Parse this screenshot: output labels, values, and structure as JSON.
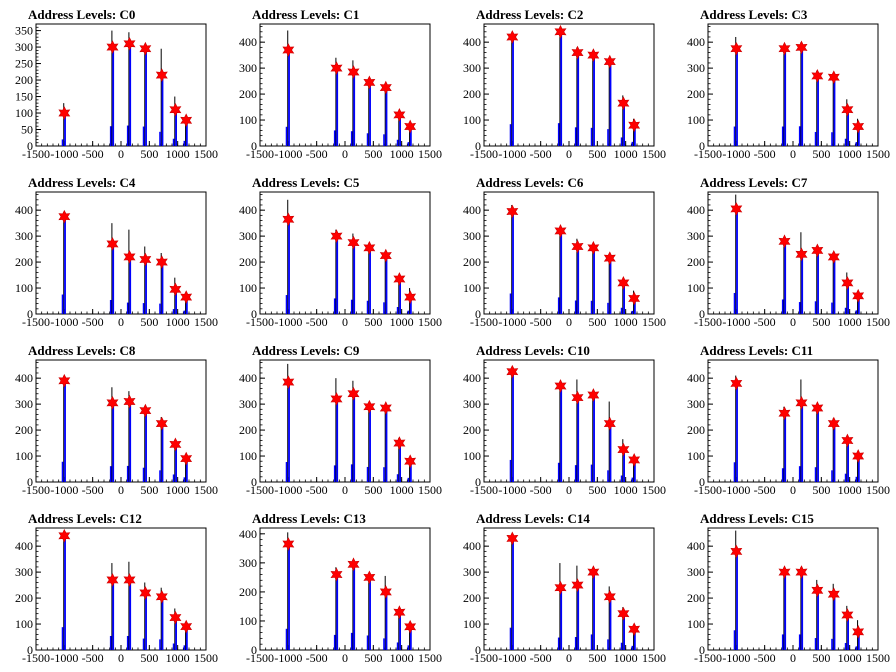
{
  "chart_data": [
    {
      "type": "bar",
      "title": "Address Levels: C0",
      "xlim": [
        -1500,
        1500
      ],
      "xticks": [
        -1500,
        -1000,
        -500,
        0,
        500,
        1000,
        1500
      ],
      "ylim": [
        0,
        370
      ],
      "yticks": [
        0,
        50,
        100,
        150,
        200,
        250,
        300,
        350
      ],
      "peaks": [
        {
          "x": -1000,
          "value": 100,
          "spike": 130
        },
        {
          "x": -150,
          "value": 300,
          "spike": 350
        },
        {
          "x": 150,
          "value": 310,
          "spike": 345
        },
        {
          "x": 430,
          "value": 295,
          "spike": 300
        },
        {
          "x": 720,
          "value": 215,
          "spike": 295
        },
        {
          "x": 960,
          "value": 110,
          "spike": 150
        },
        {
          "x": 1150,
          "value": 78,
          "spike": 80
        }
      ]
    },
    {
      "type": "bar",
      "title": "Address Levels: C1",
      "xlim": [
        -1500,
        1500
      ],
      "xticks": [
        -1500,
        -1000,
        -500,
        0,
        500,
        1000,
        1500
      ],
      "ylim": [
        0,
        470
      ],
      "yticks": [
        0,
        100,
        200,
        300,
        400
      ],
      "peaks": [
        {
          "x": -1000,
          "value": 370,
          "spike": 445
        },
        {
          "x": -150,
          "value": 300,
          "spike": 340
        },
        {
          "x": 150,
          "value": 285,
          "spike": 330
        },
        {
          "x": 430,
          "value": 245,
          "spike": 260
        },
        {
          "x": 720,
          "value": 225,
          "spike": 230
        },
        {
          "x": 960,
          "value": 120,
          "spike": 125
        },
        {
          "x": 1150,
          "value": 75,
          "spike": 80
        }
      ]
    },
    {
      "type": "bar",
      "title": "Address Levels: C2",
      "xlim": [
        -1500,
        1500
      ],
      "xticks": [
        -1500,
        -1000,
        -500,
        0,
        500,
        1000,
        1500
      ],
      "ylim": [
        0,
        470
      ],
      "yticks": [
        0,
        100,
        200,
        300,
        400
      ],
      "peaks": [
        {
          "x": -1000,
          "value": 420,
          "spike": 420
        },
        {
          "x": -150,
          "value": 440,
          "spike": 445
        },
        {
          "x": 150,
          "value": 360,
          "spike": 380
        },
        {
          "x": 430,
          "value": 350,
          "spike": 355
        },
        {
          "x": 720,
          "value": 325,
          "spike": 330
        },
        {
          "x": 960,
          "value": 165,
          "spike": 195
        },
        {
          "x": 1150,
          "value": 80,
          "spike": 105
        }
      ]
    },
    {
      "type": "bar",
      "title": "Address Levels: C3",
      "xlim": [
        -1500,
        1500
      ],
      "xticks": [
        -1500,
        -1000,
        -500,
        0,
        500,
        1000,
        1500
      ],
      "ylim": [
        0,
        470
      ],
      "yticks": [
        0,
        100,
        200,
        300,
        400
      ],
      "peaks": [
        {
          "x": -1000,
          "value": 375,
          "spike": 420
        },
        {
          "x": -150,
          "value": 375,
          "spike": 390
        },
        {
          "x": 150,
          "value": 380,
          "spike": 400
        },
        {
          "x": 430,
          "value": 270,
          "spike": 290
        },
        {
          "x": 720,
          "value": 265,
          "spike": 275
        },
        {
          "x": 960,
          "value": 140,
          "spike": 180
        },
        {
          "x": 1150,
          "value": 75,
          "spike": 105
        }
      ]
    },
    {
      "type": "bar",
      "title": "Address Levels: C4",
      "xlim": [
        -1500,
        1500
      ],
      "xticks": [
        -1500,
        -1000,
        -500,
        0,
        500,
        1000,
        1500
      ],
      "ylim": [
        0,
        470
      ],
      "yticks": [
        0,
        100,
        200,
        300,
        400
      ],
      "peaks": [
        {
          "x": -1000,
          "value": 375,
          "spike": 375
        },
        {
          "x": -150,
          "value": 270,
          "spike": 350
        },
        {
          "x": 150,
          "value": 220,
          "spike": 325
        },
        {
          "x": 430,
          "value": 210,
          "spike": 260
        },
        {
          "x": 720,
          "value": 200,
          "spike": 235
        },
        {
          "x": 960,
          "value": 95,
          "spike": 140
        },
        {
          "x": 1150,
          "value": 65,
          "spike": 80
        }
      ]
    },
    {
      "type": "bar",
      "title": "Address Levels: C5",
      "xlim": [
        -1500,
        1500
      ],
      "xticks": [
        -1500,
        -1000,
        -500,
        0,
        500,
        1000,
        1500
      ],
      "ylim": [
        0,
        470
      ],
      "yticks": [
        0,
        100,
        200,
        300,
        400
      ],
      "peaks": [
        {
          "x": -1000,
          "value": 365,
          "spike": 440
        },
        {
          "x": -150,
          "value": 300,
          "spike": 325
        },
        {
          "x": 150,
          "value": 275,
          "spike": 310
        },
        {
          "x": 430,
          "value": 255,
          "spike": 265
        },
        {
          "x": 720,
          "value": 225,
          "spike": 230
        },
        {
          "x": 960,
          "value": 135,
          "spike": 145
        },
        {
          "x": 1150,
          "value": 65,
          "spike": 100
        }
      ]
    },
    {
      "type": "bar",
      "title": "Address Levels: C6",
      "xlim": [
        -1500,
        1500
      ],
      "xticks": [
        -1500,
        -1000,
        -500,
        0,
        500,
        1000,
        1500
      ],
      "ylim": [
        0,
        470
      ],
      "yticks": [
        0,
        100,
        200,
        300,
        400
      ],
      "peaks": [
        {
          "x": -1000,
          "value": 395,
          "spike": 420
        },
        {
          "x": -150,
          "value": 320,
          "spike": 330
        },
        {
          "x": 150,
          "value": 260,
          "spike": 290
        },
        {
          "x": 430,
          "value": 255,
          "spike": 270
        },
        {
          "x": 720,
          "value": 215,
          "spike": 220
        },
        {
          "x": 960,
          "value": 120,
          "spike": 135
        },
        {
          "x": 1150,
          "value": 60,
          "spike": 90
        }
      ]
    },
    {
      "type": "bar",
      "title": "Address Levels: C7",
      "xlim": [
        -1500,
        1500
      ],
      "xticks": [
        -1500,
        -1000,
        -500,
        0,
        500,
        1000,
        1500
      ],
      "ylim": [
        0,
        470
      ],
      "yticks": [
        0,
        100,
        200,
        300,
        400
      ],
      "peaks": [
        {
          "x": -1000,
          "value": 405,
          "spike": 460
        },
        {
          "x": -150,
          "value": 280,
          "spike": 290
        },
        {
          "x": 150,
          "value": 230,
          "spike": 315
        },
        {
          "x": 430,
          "value": 245,
          "spike": 250
        },
        {
          "x": 720,
          "value": 220,
          "spike": 230
        },
        {
          "x": 960,
          "value": 120,
          "spike": 160
        },
        {
          "x": 1150,
          "value": 70,
          "spike": 80
        }
      ]
    },
    {
      "type": "bar",
      "title": "Address Levels: C8",
      "xlim": [
        -1500,
        1500
      ],
      "xticks": [
        -1500,
        -1000,
        -500,
        0,
        500,
        1000,
        1500
      ],
      "ylim": [
        0,
        470
      ],
      "yticks": [
        0,
        100,
        200,
        300,
        400
      ],
      "peaks": [
        {
          "x": -1000,
          "value": 390,
          "spike": 405
        },
        {
          "x": -150,
          "value": 305,
          "spike": 365
        },
        {
          "x": 150,
          "value": 310,
          "spike": 350
        },
        {
          "x": 430,
          "value": 275,
          "spike": 290
        },
        {
          "x": 720,
          "value": 225,
          "spike": 250
        },
        {
          "x": 960,
          "value": 145,
          "spike": 160
        },
        {
          "x": 1150,
          "value": 90,
          "spike": 95
        }
      ]
    },
    {
      "type": "bar",
      "title": "Address Levels: C9",
      "xlim": [
        -1500,
        1500
      ],
      "xticks": [
        -1500,
        -1000,
        -500,
        0,
        500,
        1000,
        1500
      ],
      "ylim": [
        0,
        470
      ],
      "yticks": [
        0,
        100,
        200,
        300,
        400
      ],
      "peaks": [
        {
          "x": -1000,
          "value": 385,
          "spike": 455
        },
        {
          "x": -150,
          "value": 320,
          "spike": 400
        },
        {
          "x": 150,
          "value": 340,
          "spike": 390
        },
        {
          "x": 430,
          "value": 290,
          "spike": 295
        },
        {
          "x": 720,
          "value": 285,
          "spike": 290
        },
        {
          "x": 960,
          "value": 150,
          "spike": 170
        },
        {
          "x": 1150,
          "value": 80,
          "spike": 90
        }
      ]
    },
    {
      "type": "bar",
      "title": "Address Levels: C10",
      "xlim": [
        -1500,
        1500
      ],
      "xticks": [
        -1500,
        -1000,
        -500,
        0,
        500,
        1000,
        1500
      ],
      "ylim": [
        0,
        470
      ],
      "yticks": [
        0,
        100,
        200,
        300,
        400
      ],
      "peaks": [
        {
          "x": -1000,
          "value": 425,
          "spike": 430
        },
        {
          "x": -150,
          "value": 370,
          "spike": 380
        },
        {
          "x": 150,
          "value": 325,
          "spike": 395
        },
        {
          "x": 430,
          "value": 335,
          "spike": 340
        },
        {
          "x": 720,
          "value": 225,
          "spike": 310
        },
        {
          "x": 960,
          "value": 125,
          "spike": 165
        },
        {
          "x": 1150,
          "value": 85,
          "spike": 95
        }
      ]
    },
    {
      "type": "bar",
      "title": "Address Levels: C11",
      "xlim": [
        -1500,
        1500
      ],
      "xticks": [
        -1500,
        -1000,
        -500,
        0,
        500,
        1000,
        1500
      ],
      "ylim": [
        0,
        470
      ],
      "yticks": [
        0,
        100,
        200,
        300,
        400
      ],
      "peaks": [
        {
          "x": -1000,
          "value": 380,
          "spike": 410
        },
        {
          "x": -150,
          "value": 265,
          "spike": 290
        },
        {
          "x": 150,
          "value": 305,
          "spike": 395
        },
        {
          "x": 430,
          "value": 285,
          "spike": 300
        },
        {
          "x": 720,
          "value": 225,
          "spike": 245
        },
        {
          "x": 960,
          "value": 160,
          "spike": 170
        },
        {
          "x": 1150,
          "value": 100,
          "spike": 105
        }
      ]
    },
    {
      "type": "bar",
      "title": "Address Levels: C12",
      "xlim": [
        -1500,
        1500
      ],
      "xticks": [
        -1500,
        -1000,
        -500,
        0,
        500,
        1000,
        1500
      ],
      "ylim": [
        0,
        470
      ],
      "yticks": [
        0,
        100,
        200,
        300,
        400
      ],
      "peaks": [
        {
          "x": -1000,
          "value": 440,
          "spike": 445
        },
        {
          "x": -150,
          "value": 270,
          "spike": 335
        },
        {
          "x": 150,
          "value": 270,
          "spike": 340
        },
        {
          "x": 430,
          "value": 220,
          "spike": 260
        },
        {
          "x": 720,
          "value": 205,
          "spike": 240
        },
        {
          "x": 960,
          "value": 125,
          "spike": 160
        },
        {
          "x": 1150,
          "value": 90,
          "spike": 95
        }
      ]
    },
    {
      "type": "bar",
      "title": "Address Levels: C13",
      "xlim": [
        -1500,
        1500
      ],
      "xticks": [
        -1500,
        -1000,
        -500,
        0,
        500,
        1000,
        1500
      ],
      "ylim": [
        0,
        420
      ],
      "yticks": [
        0,
        100,
        200,
        300,
        400
      ],
      "peaks": [
        {
          "x": -1000,
          "value": 365,
          "spike": 405
        },
        {
          "x": -150,
          "value": 260,
          "spike": 285
        },
        {
          "x": 150,
          "value": 295,
          "spike": 305
        },
        {
          "x": 430,
          "value": 250,
          "spike": 260
        },
        {
          "x": 720,
          "value": 200,
          "spike": 255
        },
        {
          "x": 960,
          "value": 130,
          "spike": 140
        },
        {
          "x": 1150,
          "value": 80,
          "spike": 85
        }
      ]
    },
    {
      "type": "bar",
      "title": "Address Levels: C14",
      "xlim": [
        -1500,
        1500
      ],
      "xticks": [
        -1500,
        -1000,
        -500,
        0,
        500,
        1000,
        1500
      ],
      "ylim": [
        0,
        470
      ],
      "yticks": [
        0,
        100,
        200,
        300,
        400
      ],
      "peaks": [
        {
          "x": -1000,
          "value": 430,
          "spike": 440
        },
        {
          "x": -150,
          "value": 240,
          "spike": 335
        },
        {
          "x": 150,
          "value": 250,
          "spike": 325
        },
        {
          "x": 430,
          "value": 300,
          "spike": 305
        },
        {
          "x": 720,
          "value": 205,
          "spike": 245
        },
        {
          "x": 960,
          "value": 140,
          "spike": 165
        },
        {
          "x": 1150,
          "value": 80,
          "spike": 90
        }
      ]
    },
    {
      "type": "bar",
      "title": "Address Levels: C15",
      "xlim": [
        -1500,
        1500
      ],
      "xticks": [
        -1500,
        -1000,
        -500,
        0,
        500,
        1000,
        1500
      ],
      "ylim": [
        0,
        470
      ],
      "yticks": [
        0,
        100,
        200,
        300,
        400
      ],
      "peaks": [
        {
          "x": -1000,
          "value": 380,
          "spike": 460
        },
        {
          "x": -150,
          "value": 300,
          "spike": 310
        },
        {
          "x": 150,
          "value": 300,
          "spike": 320
        },
        {
          "x": 430,
          "value": 230,
          "spike": 270
        },
        {
          "x": 720,
          "value": 215,
          "spike": 255
        },
        {
          "x": 960,
          "value": 135,
          "spike": 170
        },
        {
          "x": 1150,
          "value": 70,
          "spike": 115
        }
      ]
    }
  ],
  "colors": {
    "histogram": "#0000ff",
    "spike": "#000000",
    "marker": "#ff0000",
    "marker_edge": "#cc0000",
    "axis": "#000000"
  }
}
